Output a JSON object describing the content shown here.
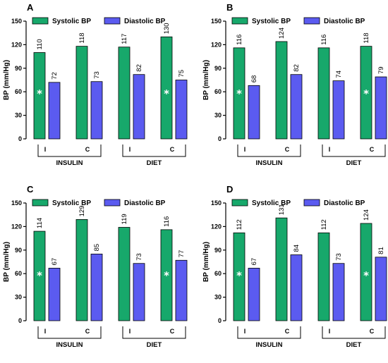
{
  "colors": {
    "systolic": "#17a86b",
    "diastolic": "#5b5bf0",
    "bar_stroke": "#000000"
  },
  "legend": {
    "systolic": "Systolic BP",
    "diastolic": "Diastolic BP"
  },
  "y_axis_label": "BP (mm/Hg)",
  "chart_data": [
    {
      "type": "bar",
      "panel": "A",
      "ylabel": "BP (mm/Hg)",
      "ylim": [
        0,
        150
      ],
      "yticks": [
        0,
        30,
        60,
        90,
        120,
        150
      ],
      "categories": [
        "I",
        "C",
        "I",
        "C"
      ],
      "groups": [
        "INSULIN",
        "DIET"
      ],
      "series": [
        {
          "name": "Systolic BP",
          "values": [
            110,
            118,
            117,
            130
          ]
        },
        {
          "name": "Diastolic BP",
          "values": [
            72,
            73,
            82,
            75
          ]
        }
      ],
      "significance": [
        true,
        false,
        false,
        true
      ],
      "legend_position": "top-left",
      "grid": false
    },
    {
      "type": "bar",
      "panel": "B",
      "ylabel": "BP (mm/Hg)",
      "ylim": [
        0,
        150
      ],
      "yticks": [
        0,
        30,
        60,
        90,
        120,
        150
      ],
      "categories": [
        "I",
        "C",
        "I",
        "C"
      ],
      "groups": [
        "INSULIN",
        "DIET"
      ],
      "series": [
        {
          "name": "Systolic BP",
          "values": [
            116,
            124,
            116,
            118
          ]
        },
        {
          "name": "Diastolic BP",
          "values": [
            68,
            82,
            74,
            79
          ]
        }
      ],
      "significance": [
        true,
        false,
        false,
        true
      ],
      "legend_position": "top-left",
      "grid": false
    },
    {
      "type": "bar",
      "panel": "C",
      "ylabel": "BP (mm/Hg)",
      "ylim": [
        0,
        150
      ],
      "yticks": [
        0,
        30,
        60,
        90,
        120,
        150
      ],
      "categories": [
        "I",
        "C",
        "I",
        "C"
      ],
      "groups": [
        "INSULIN",
        "DIET"
      ],
      "series": [
        {
          "name": "Systolic BP",
          "values": [
            114,
            129,
            119,
            116
          ]
        },
        {
          "name": "Diastolic BP",
          "values": [
            67,
            85,
            73,
            77
          ]
        }
      ],
      "significance": [
        true,
        false,
        false,
        true
      ],
      "legend_position": "top-left",
      "grid": false
    },
    {
      "type": "bar",
      "panel": "D",
      "ylabel": "BP (mm/Hg)",
      "ylim": [
        0,
        150
      ],
      "yticks": [
        0,
        30,
        60,
        90,
        120,
        150
      ],
      "categories": [
        "I",
        "C",
        "I",
        "C"
      ],
      "groups": [
        "INSULIN",
        "DIET"
      ],
      "series": [
        {
          "name": "Systolic BP",
          "values": [
            112,
            131,
            112,
            124
          ]
        },
        {
          "name": "Diastolic BP",
          "values": [
            67,
            84,
            73,
            81
          ]
        }
      ],
      "significance": [
        true,
        false,
        false,
        true
      ],
      "legend_position": "top-left",
      "grid": false
    }
  ]
}
